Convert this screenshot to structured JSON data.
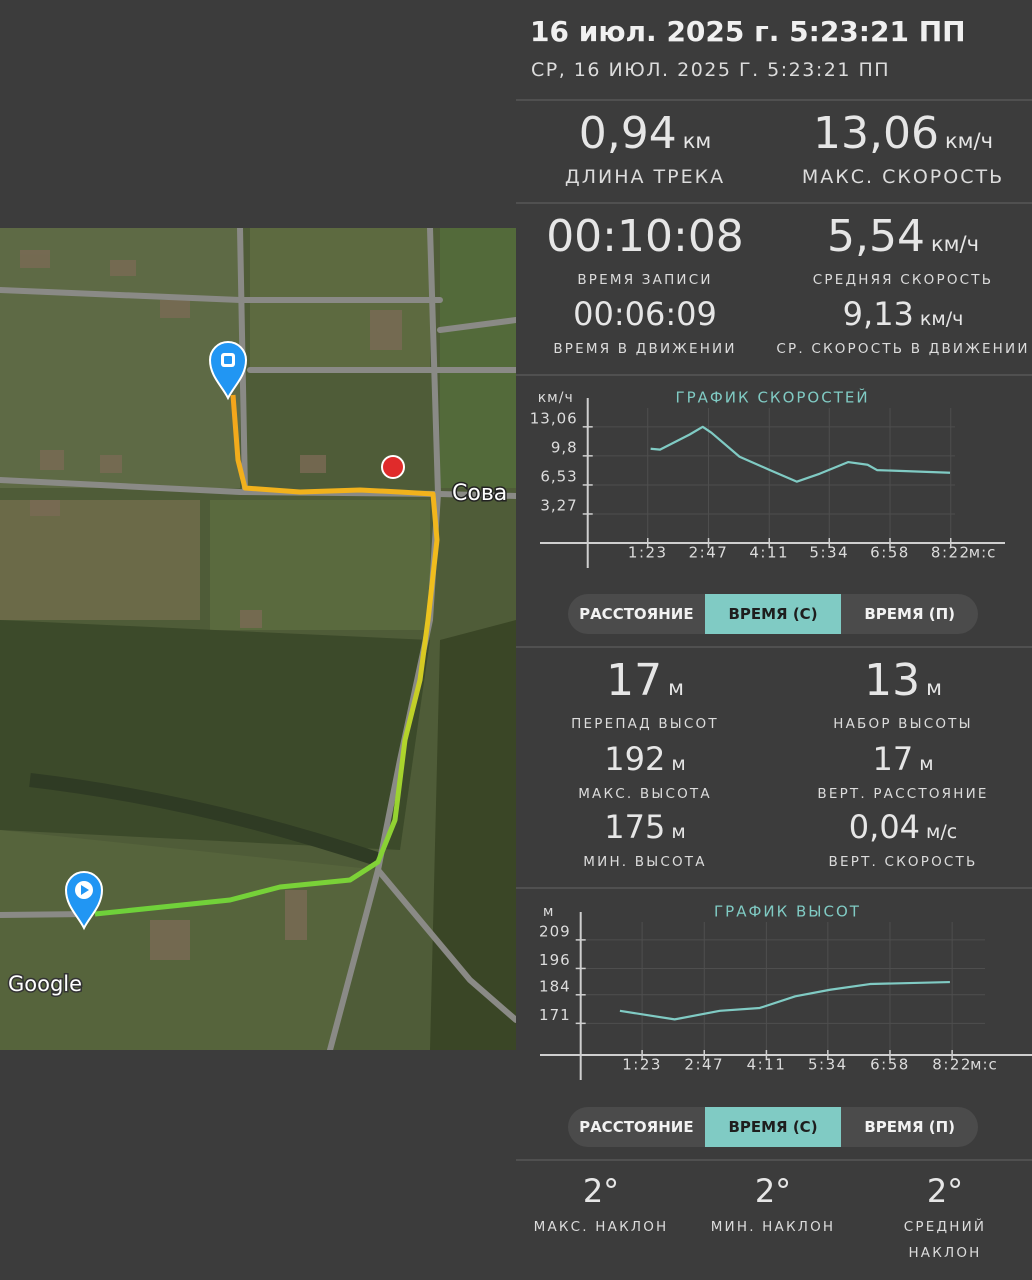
{
  "header": {
    "title": "16 июл. 2025 г. 5:23:21 ПП",
    "subtitle": "СР, 16 ИЮЛ. 2025 Г. 5:23:21 ПП"
  },
  "map": {
    "place_label": "Сова",
    "attribution": "Google"
  },
  "track_stats": [
    {
      "value": "0,94",
      "unit": "км",
      "label": "ДЛИНА ТРЕКА"
    },
    {
      "value": "13,06",
      "unit": "км/ч",
      "label": "МАКС. СКОРОСТЬ"
    },
    {
      "value": "00:10:08",
      "label": "ВРЕМЯ ЗАПИСИ"
    },
    {
      "value": "5,54",
      "unit": "км/ч",
      "label": "СРЕДНЯЯ СКОРОСТЬ"
    },
    {
      "value": "00:06:09",
      "label": "ВРЕМЯ В ДВИЖЕНИИ"
    },
    {
      "value": "9,13",
      "unit": "км/ч",
      "label": "СР. СКОРОСТЬ В ДВИЖЕНИИ"
    }
  ],
  "speed_chart": {
    "type": "line",
    "title": "ГРАФИК СКОРОСТЕЙ",
    "y_unit": "км/ч",
    "x_unit": "м:с",
    "color": "#80cbc4",
    "grid": true,
    "xlim": [
      -66,
      577
    ],
    "ylim": [
      -2.8,
      16.3
    ],
    "xticks": [
      {
        "value": 83,
        "label": "1:23"
      },
      {
        "value": 167,
        "label": "2:47"
      },
      {
        "value": 251,
        "label": "4:11"
      },
      {
        "value": 334,
        "label": "5:34"
      },
      {
        "value": 418,
        "label": "6:58"
      },
      {
        "value": 502,
        "label": "8:22"
      }
    ],
    "yticks": [
      {
        "value": 3.27,
        "label": "3,27"
      },
      {
        "value": 6.53,
        "label": "6,53"
      },
      {
        "value": 9.8,
        "label": "9,8"
      },
      {
        "value": 13.06,
        "label": "13,06"
      }
    ],
    "x": [
      87,
      100,
      141,
      159,
      171,
      210,
      252,
      289,
      321,
      360,
      387,
      400,
      501
    ],
    "values": [
      10.6,
      10.5,
      12.2,
      13.06,
      12.4,
      9.7,
      8.2,
      6.9,
      7.8,
      9.1,
      8.8,
      8.2,
      7.9
    ]
  },
  "speed_toggle": {
    "options": [
      "РАССТОЯНИЕ",
      "ВРЕМЯ (С)",
      "ВРЕМЯ (П)"
    ],
    "selected": 1
  },
  "elevation_stats": [
    {
      "value": "17",
      "unit": "м",
      "label": "ПЕРЕПАД ВЫСОТ"
    },
    {
      "value": "13",
      "unit": "м",
      "label": "НАБОР ВЫСОТЫ"
    },
    {
      "value": "192",
      "unit": "м",
      "label": "МАКС. ВЫСОТА"
    },
    {
      "value": "17",
      "unit": "м",
      "label": "ВЕРТ. РАССТОЯНИЕ"
    },
    {
      "value": "175",
      "unit": "м",
      "label": "МИН. ВЫСОТА"
    },
    {
      "value": "0,04",
      "unit": "м/с",
      "label": "ВЕРТ. СКОРОСТЬ"
    }
  ],
  "elevation_chart": {
    "type": "line",
    "title": "ГРАФИК ВЫСОТ",
    "y_unit": "м",
    "x_unit": "м:с",
    "color": "#80cbc4",
    "grid": true,
    "xlim": [
      -55,
      614
    ],
    "ylim": [
      145.2,
      221.7
    ],
    "xticks": [
      {
        "value": 83,
        "label": "1:23"
      },
      {
        "value": 167,
        "label": "2:47"
      },
      {
        "value": 251,
        "label": "4:11"
      },
      {
        "value": 334,
        "label": "5:34"
      },
      {
        "value": 418,
        "label": "6:58"
      },
      {
        "value": 502,
        "label": "8:22"
      }
    ],
    "yticks": [
      171,
      184,
      196,
      209
    ],
    "x": [
      53,
      127,
      188,
      242,
      290,
      337,
      391,
      499
    ],
    "values": [
      176.7,
      172.8,
      176.7,
      178,
      183.3,
      186.3,
      188.9,
      189.8
    ]
  },
  "elevation_toggle": {
    "options": [
      "РАССТОЯНИЕ",
      "ВРЕМЯ (С)",
      "ВРЕМЯ (П)"
    ],
    "selected": 1
  },
  "slope_stats": [
    {
      "value": "2°",
      "label": "МАКС. НАКЛОН"
    },
    {
      "value": "2°",
      "label": "МИН. НАКЛОН"
    },
    {
      "value": "2°",
      "label": "СРЕДНИЙ НАКЛОН"
    }
  ]
}
